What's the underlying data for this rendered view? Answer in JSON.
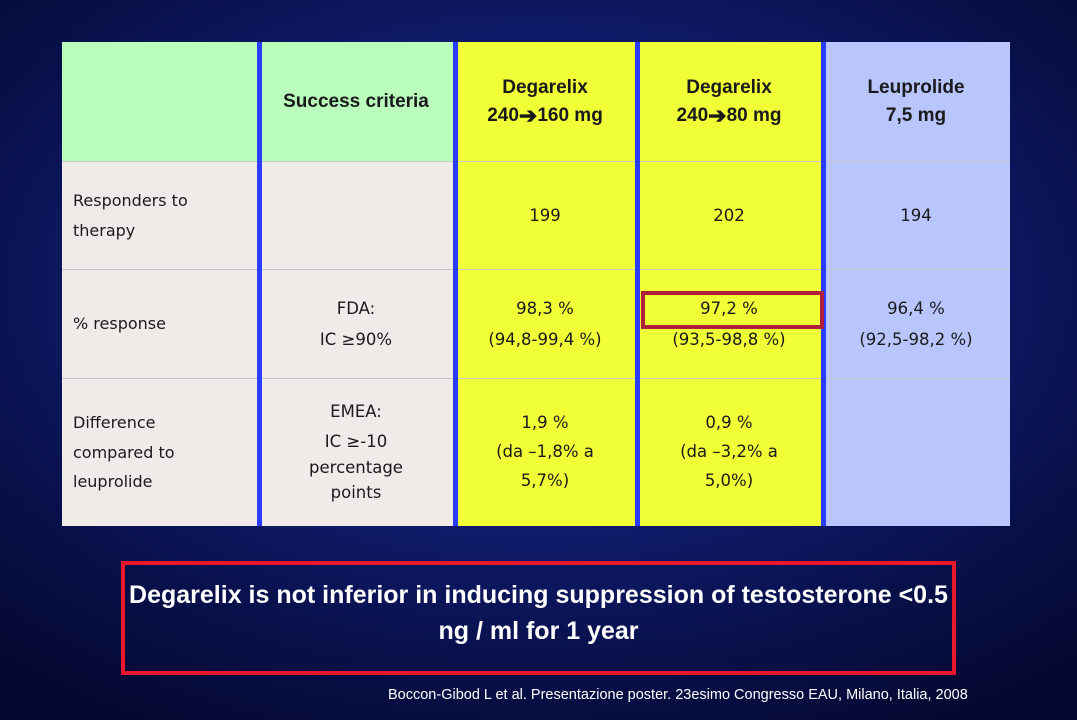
{
  "table": {
    "headers": [
      "",
      "Success criteria",
      [
        "Degarelix",
        "240",
        "160 mg"
      ],
      [
        "Degarelix",
        "240",
        "80 mg"
      ],
      [
        "Leuprolide",
        "7,5 mg"
      ]
    ],
    "rows": [
      {
        "label": "Responders to therapy",
        "criteria": [],
        "degarelix_160": [
          "199"
        ],
        "degarelix_80": [
          "202"
        ],
        "leuprolide": [
          "194"
        ]
      },
      {
        "label": "% response",
        "criteria": [
          "FDA:",
          "IC ≥90%"
        ],
        "degarelix_160": [
          "98,3 %",
          "(94,8-99,4 %)"
        ],
        "degarelix_80": [
          "97,2 %",
          "(93,5-98,8 %)"
        ],
        "leuprolide": [
          "96,4 %",
          "(92,5-98,2 %)"
        ]
      },
      {
        "label": "Difference compared to leuprolide",
        "criteria": [
          "EMEA:",
          "IC ≥-10 percentage points"
        ],
        "degarelix_160": [
          "1,9 %",
          "(da –1,8% a 5,7%)"
        ],
        "degarelix_80": [
          "0,9 %",
          "(da –3,2% a 5,0%)"
        ],
        "leuprolide": []
      }
    ]
  },
  "conclusion": "Degarelix is not inferior in inducing suppression of testosterone <0.5 ng / ml for 1 year",
  "citation": "Boccon-Gibod L et al. Presentazione poster. 23esimo Congresso EAU, Milano, Italia, 2008",
  "colors": {
    "header_green": "#b9fcbc",
    "degarelix_yellow": "#f0ff36",
    "leuprolide_blue": "#b9c5fd",
    "highlight_border": "#b0203a",
    "callout_border": "#e8182a"
  }
}
